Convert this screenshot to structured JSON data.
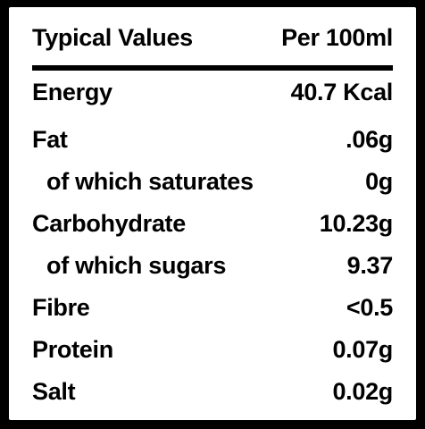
{
  "header": {
    "label": "Typical Values",
    "value": "Per 100ml"
  },
  "rows": [
    [
      "Energy",
      "40.7 Kcal"
    ],
    [
      "Fat",
      ".06g"
    ],
    [
      "of which saturates",
      "0g"
    ],
    [
      "Carbohydrate",
      "10.23g"
    ],
    [
      "of which sugars",
      "9.37"
    ],
    [
      "Fibre",
      "<0.5"
    ],
    [
      "Protein",
      "0.07g"
    ],
    [
      "Salt",
      "0.02g"
    ]
  ]
}
